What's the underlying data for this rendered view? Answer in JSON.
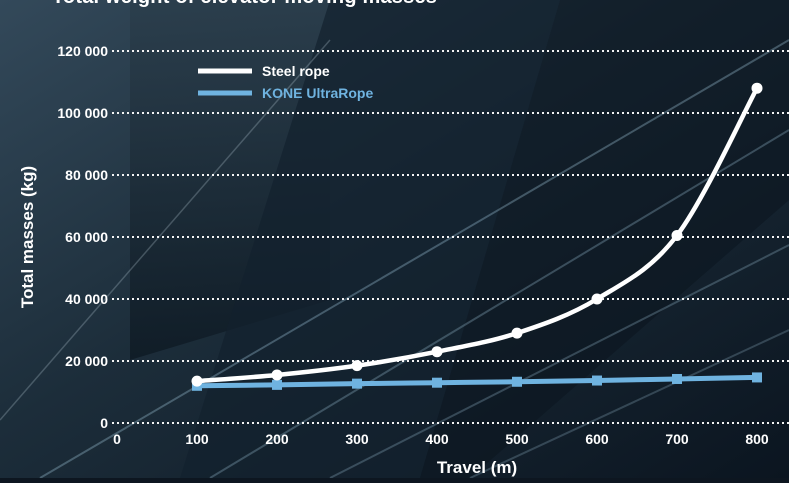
{
  "chart_data": {
    "type": "line",
    "title": "Total weight of elevator moving masses",
    "xlabel": "Travel (m)",
    "ylabel": "Total masses (kg)",
    "xlim": [
      0,
      800
    ],
    "ylim": [
      0,
      120000
    ],
    "x_ticks": [
      0,
      100,
      200,
      300,
      400,
      500,
      600,
      700,
      800
    ],
    "x_tick_labels": [
      "0",
      "100",
      "200",
      "300",
      "400",
      "500",
      "600",
      "700",
      "800"
    ],
    "y_ticks": [
      0,
      20000,
      40000,
      60000,
      80000,
      100000,
      120000
    ],
    "y_tick_labels": [
      "0",
      "20 000",
      "40 000",
      "60 000",
      "80 000",
      "100 000",
      "120 000"
    ],
    "grid": "horizontal-dotted",
    "legend_position": "top-left",
    "x": [
      100,
      200,
      300,
      400,
      500,
      600,
      700,
      800
    ],
    "series": [
      {
        "name": "Steel rope",
        "color": "#ffffff",
        "marker": "circle",
        "values": [
          13500,
          15500,
          18500,
          23000,
          29000,
          40000,
          60500,
          108000
        ]
      },
      {
        "name": "KONE UltraRope",
        "color": "#6fb3e0",
        "marker": "square",
        "values": [
          12000,
          12300,
          12700,
          13000,
          13300,
          13700,
          14200,
          14700
        ]
      }
    ]
  }
}
